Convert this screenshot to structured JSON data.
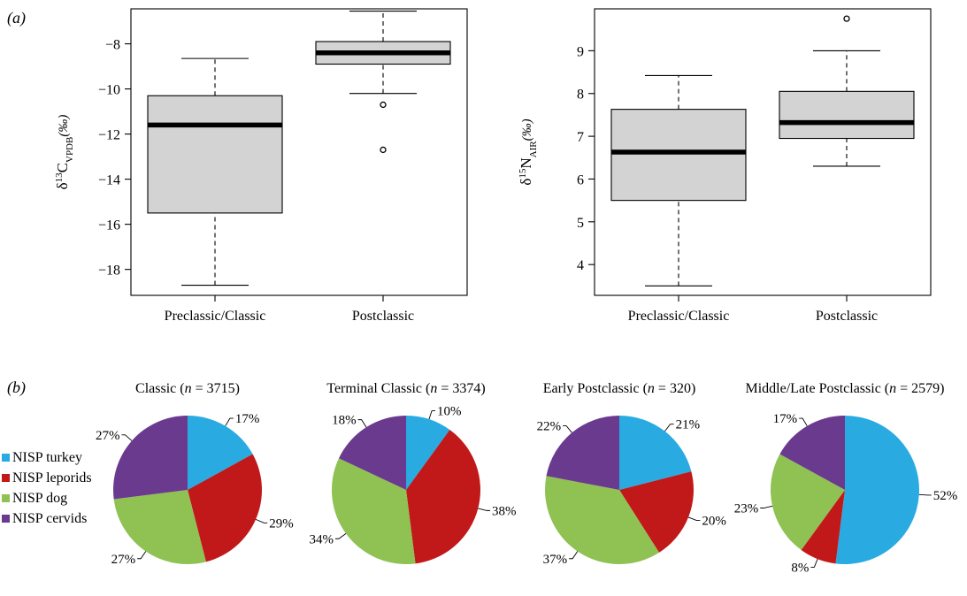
{
  "panel_labels": {
    "a": "(a)",
    "b": "(b)"
  },
  "chart_data": [
    {
      "type": "box",
      "ylabel": {
        "base": "δ",
        "sup": "13",
        "elem": "C",
        "sub": "VPDB",
        "unit": "(‰)"
      },
      "categories": [
        "Preclassic/Classic",
        "Postclassic"
      ],
      "ylim": [
        -19.15,
        -6.45
      ],
      "yticks": [
        -18,
        -16,
        -14,
        -12,
        -10,
        -8
      ],
      "boxes": [
        {
          "whisker_low": -18.7,
          "q1": -15.5,
          "median": -11.6,
          "q3": -10.3,
          "whisker_high": -8.65,
          "outliers": []
        },
        {
          "whisker_low": -10.2,
          "q1": -8.9,
          "median": -8.4,
          "q3": -7.9,
          "whisker_high": -6.55,
          "outliers": [
            -10.7,
            -12.7
          ]
        }
      ]
    },
    {
      "type": "box",
      "ylabel": {
        "base": "δ",
        "sup": "15",
        "elem": "N",
        "sub": "AIR",
        "unit": "(‰)"
      },
      "categories": [
        "Preclassic/Classic",
        "Postclassic"
      ],
      "ylim": [
        3.28,
        9.98
      ],
      "yticks": [
        4,
        5,
        6,
        7,
        8,
        9
      ],
      "boxes": [
        {
          "whisker_low": 3.5,
          "q1": 5.5,
          "median": 6.63,
          "q3": 7.63,
          "whisker_high": 8.42,
          "outliers": []
        },
        {
          "whisker_low": 6.3,
          "q1": 6.95,
          "median": 7.32,
          "q3": 8.05,
          "whisker_high": 9.0,
          "outliers": [
            9.75
          ]
        }
      ]
    },
    {
      "type": "pie",
      "title": {
        "text": "Classic (",
        "n": "n",
        "rest": " = 3715)"
      },
      "slices": [
        {
          "label": "17%",
          "value": 17,
          "series": 0
        },
        {
          "label": "29%",
          "value": 29,
          "series": 1
        },
        {
          "label": "27%",
          "value": 27,
          "series": 2
        },
        {
          "label": "27%",
          "value": 27,
          "series": 3
        }
      ]
    },
    {
      "type": "pie",
      "title": {
        "text": "Terminal Classic (",
        "n": "n",
        "rest": " = 3374)"
      },
      "slices": [
        {
          "label": "10%",
          "value": 10,
          "series": 0
        },
        {
          "label": "38%",
          "value": 38,
          "series": 1
        },
        {
          "label": "34%",
          "value": 34,
          "series": 2
        },
        {
          "label": "18%",
          "value": 18,
          "series": 3
        }
      ]
    },
    {
      "type": "pie",
      "title": {
        "text": "Early Postclassic (",
        "n": "n",
        "rest": " = 320)"
      },
      "slices": [
        {
          "label": "21%",
          "value": 21,
          "series": 0
        },
        {
          "label": "20%",
          "value": 20,
          "series": 1
        },
        {
          "label": "37%",
          "value": 37,
          "series": 2
        },
        {
          "label": "22%",
          "value": 22,
          "series": 3
        }
      ]
    },
    {
      "type": "pie",
      "title": {
        "text": "Middle/Late Postclassic (",
        "n": "n",
        "rest": " = 2579)"
      },
      "slices": [
        {
          "label": "52%",
          "value": 52,
          "series": 0
        },
        {
          "label": "8%",
          "value": 8,
          "series": 1
        },
        {
          "label": "23%",
          "value": 23,
          "series": 2
        },
        {
          "label": "17%",
          "value": 17,
          "series": 3
        }
      ]
    }
  ],
  "legend": [
    {
      "name": "NISP turkey",
      "color": "#29abe2"
    },
    {
      "name": "NISP leporids",
      "color": "#c1191a"
    },
    {
      "name": "NISP dog",
      "color": "#8fc153"
    },
    {
      "name": "NISP cervids",
      "color": "#6a3a8f"
    }
  ],
  "colors": {
    "box_fill": "#d3d3d3"
  }
}
